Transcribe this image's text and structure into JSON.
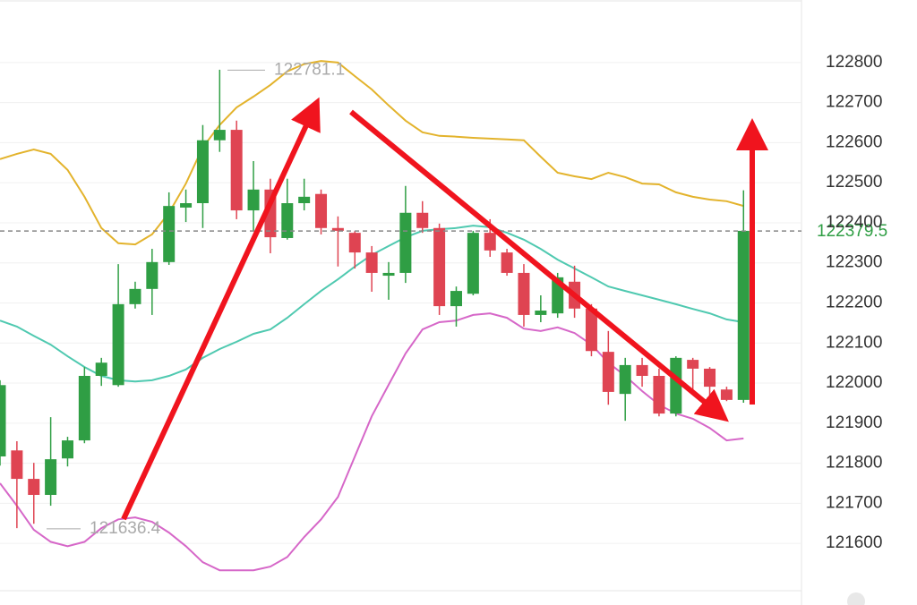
{
  "chart_data": {
    "type": "candlestick",
    "up_color": "#2f9e44",
    "down_color": "#df4452",
    "open": [
      121817,
      121832,
      121761,
      121721,
      121812,
      121857,
      122018,
      121995,
      122197,
      122235,
      122302,
      122438,
      122449,
      122606,
      122632,
      122431,
      122483,
      122362,
      122449,
      122472,
      122387,
      122375,
      122326,
      122268,
      122275,
      122425,
      122387,
      122192,
      122223,
      122375,
      122326,
      122275,
      122170,
      122174,
      122253,
      122186,
      122078,
      121973,
      122045,
      122018,
      121924,
      122058,
      122036,
      121984,
      121958
    ],
    "high": [
      122007,
      121855,
      121801,
      121915,
      121866,
      122040,
      122063,
      122297,
      122253,
      122335,
      122476,
      122483,
      122644,
      122782,
      122655,
      122554,
      122510,
      122510,
      122510,
      122483,
      122416,
      122380,
      122342,
      122302,
      122492,
      122454,
      122398,
      122241,
      122380,
      122409,
      122335,
      122297,
      122219,
      122275,
      122293,
      122197,
      122130,
      122063,
      122063,
      122036,
      122067,
      122063,
      122040,
      121991,
      122481
    ],
    "low": [
      121794,
      121638,
      121649,
      121694,
      121792,
      121850,
      121993,
      121991,
      122186,
      122170,
      122295,
      122402,
      122387,
      122577,
      122409,
      122380,
      122324,
      122358,
      122431,
      122371,
      122291,
      122286,
      122228,
      122208,
      122250,
      122375,
      122170,
      122141,
      122219,
      122315,
      122268,
      122141,
      122152,
      122163,
      122163,
      122067,
      121946,
      121906,
      121991,
      121917,
      121917,
      121984,
      121962,
      121955,
      121951
    ],
    "close": [
      121995,
      121761,
      121721,
      121810,
      121857,
      122018,
      122051,
      122197,
      122235,
      122302,
      122442,
      122449,
      122606,
      122632,
      122431,
      122483,
      122364,
      122449,
      122465,
      122387,
      122380,
      122326,
      122275,
      122275,
      122425,
      122387,
      122192,
      122230,
      122375,
      122331,
      122275,
      122170,
      122181,
      122264,
      122186,
      122080,
      121978,
      122045,
      122018,
      121924,
      122063,
      122036,
      121991,
      121958,
      122380
    ],
    "bands": [
      {
        "color": "#e3b32c",
        "values": [
          122559,
          122572,
          122583,
          122572,
          122532,
          122465,
          122387,
          122349,
          122346,
          122371,
          122425,
          122498,
          122588,
          122644,
          122688,
          122715,
          122744,
          122778,
          122796,
          122804,
          122800,
          122766,
          122733,
          122693,
          122655,
          122626,
          122617,
          122615,
          122612,
          122610,
          122608,
          122606,
          122565,
          122525,
          122516,
          122509,
          122525,
          122514,
          122498,
          122496,
          122476,
          122465,
          122458,
          122454,
          122442
        ]
      },
      {
        "color": "#4fc9b0",
        "values": [
          122156,
          122141,
          122118,
          122096,
          122067,
          122040,
          122018,
          122007,
          122004,
          122007,
          122018,
          122034,
          122063,
          122085,
          122103,
          122123,
          122134,
          122163,
          122197,
          122230,
          122259,
          122291,
          122320,
          122342,
          122364,
          122380,
          122384,
          122387,
          122393,
          122389,
          122375,
          122358,
          122335,
          122308,
          122286,
          122264,
          122241,
          122230,
          122219,
          122208,
          122197,
          122185,
          122174,
          122159,
          122152
        ]
      },
      {
        "color": "#d667c8",
        "values": [
          121750,
          121694,
          121634,
          121604,
          121593,
          121604,
          121638,
          121660,
          121665,
          121654,
          121627,
          121593,
          121553,
          121533,
          121533,
          121533,
          121542,
          121566,
          121616,
          121660,
          121716,
          121817,
          121917,
          121996,
          122074,
          122134,
          122152,
          122156,
          122170,
          122174,
          122163,
          122136,
          122130,
          122139,
          122125,
          122096,
          122051,
          122018,
          121980,
          121946,
          121924,
          121911,
          121888,
          121857,
          121862
        ]
      }
    ],
    "last_price": 122379.5,
    "high_marker": 122781.1,
    "low_marker": 121636.4,
    "ylim": [
      121482,
      122956
    ],
    "yticks": [
      121600,
      121700,
      121800,
      121900,
      122000,
      122100,
      122200,
      122300,
      122400,
      122500,
      122600,
      122700,
      122800
    ],
    "grid": true
  }
}
